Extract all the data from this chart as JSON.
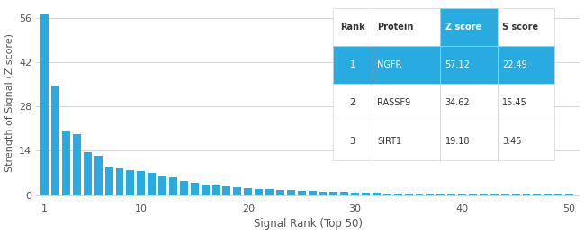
{
  "bar_values": [
    57.12,
    34.62,
    19.18,
    20.5,
    13.0,
    12.5,
    8.8,
    8.5,
    8.0,
    7.6,
    7.3,
    6.5,
    5.5,
    4.5,
    3.8,
    3.3,
    3.0,
    2.7,
    2.5,
    2.3,
    2.1,
    1.9,
    1.7,
    1.55,
    1.4,
    1.25,
    1.1,
    0.95,
    0.85,
    0.75,
    0.65,
    0.55,
    0.5,
    0.45,
    0.4,
    0.35,
    0.3,
    0.28,
    0.26,
    0.24,
    0.22,
    0.2,
    0.18,
    0.16,
    0.14,
    0.12,
    0.11,
    0.1,
    0.09,
    0.08
  ],
  "bar_color": "#29ABE2",
  "bg_color": "#ffffff",
  "xlabel": "Signal Rank (Top 50)",
  "ylabel": "Strength of Signal (Z score)",
  "yticks": [
    0,
    14,
    28,
    42,
    56
  ],
  "xticks": [
    1,
    10,
    20,
    30,
    40,
    50
  ],
  "xlim": [
    0.2,
    51
  ],
  "ylim": [
    -1.5,
    60
  ],
  "table_data": [
    [
      "Rank",
      "Protein",
      "Z score",
      "S score"
    ],
    [
      "1",
      "NGFR",
      "57.12",
      "22.49"
    ],
    [
      "2",
      "RASSF9",
      "34.62",
      "15.45"
    ],
    [
      "3",
      "SIRT1",
      "19.18",
      "3.45"
    ]
  ],
  "table_highlight_color": "#29ABE2",
  "grid_color": "#d0d0d0",
  "axis_label_color": "#555555",
  "tick_label_color": "#555555"
}
